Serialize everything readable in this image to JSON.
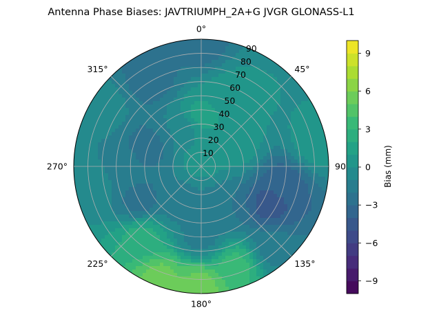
{
  "chart_data": {
    "type": "heatmap",
    "projection": "polar",
    "title": "Antenna Phase Biases: JAVTRIUMPH_2A+G JVGR GLONASS-L1",
    "angular_axis": {
      "zero_location": "top",
      "direction": "clockwise",
      "tick_labels": [
        {
          "deg": 0,
          "label": "0°"
        },
        {
          "deg": 45,
          "label": "45°"
        },
        {
          "deg": 90,
          "label": "90°"
        },
        {
          "deg": 135,
          "label": "135°"
        },
        {
          "deg": 180,
          "label": "180°"
        },
        {
          "deg": 225,
          "label": "225°"
        },
        {
          "deg": 270,
          "label": "270°"
        },
        {
          "deg": 315,
          "label": "315°"
        }
      ]
    },
    "radial_axis": {
      "range": [
        0,
        90
      ],
      "ticks": [
        10,
        20,
        30,
        40,
        50,
        60,
        70,
        80,
        90
      ]
    },
    "grid": true,
    "colorbar": {
      "label": "Bias (mm)",
      "colormap": "viridis",
      "range": [
        -10,
        10
      ],
      "levels": 20,
      "ticks": [
        -9,
        -6,
        -3,
        0,
        3,
        6,
        9
      ],
      "tick_labels": [
        "−9",
        "−6",
        "−3",
        "0",
        "3",
        "6",
        "9"
      ]
    },
    "field_samples": [
      {
        "az": 0,
        "zen": 85,
        "bias": -2.5
      },
      {
        "az": 330,
        "zen": 70,
        "bias": -2.5
      },
      {
        "az": 20,
        "zen": 55,
        "bias": 0.5
      },
      {
        "az": 0,
        "zen": 35,
        "bias": 1.5
      },
      {
        "az": 40,
        "zen": 60,
        "bias": 0.0
      },
      {
        "az": 100,
        "zen": 60,
        "bias": -3.5
      },
      {
        "az": 120,
        "zen": 55,
        "bias": -4.5
      },
      {
        "az": 80,
        "zen": 80,
        "bias": 0.5
      },
      {
        "az": 140,
        "zen": 75,
        "bias": -1.5
      },
      {
        "az": 180,
        "zen": 85,
        "bias": 5.5
      },
      {
        "az": 200,
        "zen": 85,
        "bias": 5.5
      },
      {
        "az": 160,
        "zen": 75,
        "bias": 3.5
      },
      {
        "az": 220,
        "zen": 65,
        "bias": 2.5
      },
      {
        "az": 240,
        "zen": 50,
        "bias": -2.5
      },
      {
        "az": 270,
        "zen": 55,
        "bias": -1.5
      },
      {
        "az": 290,
        "zen": 40,
        "bias": -2.5
      },
      {
        "az": 300,
        "zen": 80,
        "bias": -0.5
      },
      {
        "az": 180,
        "zen": 50,
        "bias": -1.5
      },
      {
        "az": 150,
        "zen": 35,
        "bias": -2.0
      },
      {
        "az": 210,
        "zen": 30,
        "bias": -1.5
      },
      {
        "az": 330,
        "zen": 30,
        "bias": -1.0
      },
      {
        "az": 0,
        "zen": 5,
        "bias": 0.5
      },
      {
        "az": 60,
        "zen": 30,
        "bias": 0.5
      },
      {
        "az": 260,
        "zen": 80,
        "bias": 0.0
      }
    ]
  }
}
